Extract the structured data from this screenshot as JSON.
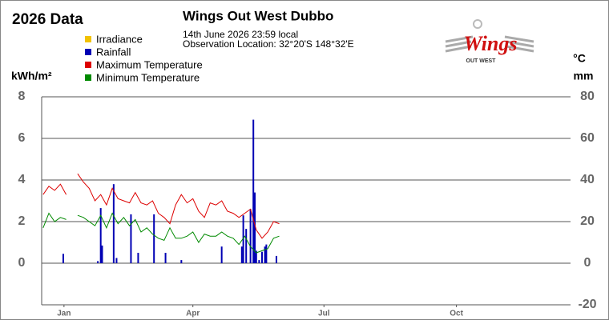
{
  "chart_data": {
    "type": "line",
    "title": "Wings Out West Dubbo",
    "subtitle": "14th June 2026  23:59 local",
    "location": "Observation Location: 32°20'S 148°32'E",
    "year_label": "2026 Data",
    "logo": {
      "title": "Wings",
      "subtitle": "OUT WEST"
    },
    "ylabel": "kWh/m²",
    "y2label": [
      "°C",
      "mm"
    ],
    "xlim": [
      0,
      365
    ],
    "xticks": [
      {
        "value": 15.5,
        "label": "Jan"
      },
      {
        "value": 105,
        "label": "Apr"
      },
      {
        "value": 196,
        "label": "Jul"
      },
      {
        "value": 288,
        "label": "Oct"
      }
    ],
    "ylim": [
      -2,
      8
    ],
    "yticks": [
      0,
      2,
      4,
      6,
      8
    ],
    "y2lim": [
      -20,
      80
    ],
    "y2ticks": [
      -20,
      0,
      20,
      40,
      60,
      80
    ],
    "grid": true,
    "series": [
      {
        "name": "Irradiance",
        "color": "#f2c200",
        "type": "line",
        "x": [],
        "values": []
      },
      {
        "name": "Rainfall",
        "color": "#0000b4",
        "type": "bar",
        "axis": "y2",
        "x": [
          15,
          39,
          41,
          42,
          50,
          52,
          62,
          67,
          78,
          86,
          97,
          125,
          139,
          140,
          142,
          145,
          147,
          148,
          149,
          151,
          153,
          155,
          156,
          163
        ],
        "values": [
          4.5,
          1,
          26.5,
          8.5,
          38,
          2.5,
          23.5,
          5,
          23.5,
          5,
          1.5,
          8,
          8,
          23,
          16.5,
          26,
          69,
          34,
          6,
          1.5,
          5.5,
          8,
          9,
          3.5
        ]
      },
      {
        "name": "Maximum Temperature",
        "color": "#dd0000",
        "type": "line",
        "axis": "y2",
        "x": [
          1,
          5,
          9,
          13,
          17,
          21,
          25,
          29,
          33,
          37,
          41,
          45,
          49,
          53,
          57,
          61,
          65,
          69,
          73,
          77,
          81,
          85,
          89,
          93,
          97,
          101,
          105,
          109,
          113,
          117,
          121,
          125,
          129,
          133,
          137,
          141,
          145,
          149,
          153,
          157,
          161,
          165
        ],
        "values": [
          33,
          37,
          35,
          38,
          33,
          null,
          43,
          39,
          36,
          30,
          33,
          28,
          36,
          31,
          30,
          29,
          34,
          29,
          28,
          30,
          24,
          22,
          19,
          28,
          33,
          29,
          31,
          25,
          22,
          29,
          28,
          30,
          25,
          24,
          22,
          24,
          26,
          16,
          12,
          15,
          20,
          19
        ]
      },
      {
        "name": "Minimum Temperature",
        "color": "#008a00",
        "type": "line",
        "axis": "y2",
        "x": [
          1,
          5,
          9,
          13,
          17,
          21,
          25,
          29,
          33,
          37,
          41,
          45,
          49,
          53,
          57,
          61,
          65,
          69,
          73,
          77,
          81,
          85,
          89,
          93,
          97,
          101,
          105,
          109,
          113,
          117,
          121,
          125,
          129,
          133,
          137,
          141,
          145,
          149,
          153,
          157,
          161,
          165
        ],
        "values": [
          17,
          24,
          20,
          22,
          21,
          null,
          23,
          22,
          20,
          18,
          23,
          17,
          24,
          19,
          22,
          18,
          21,
          15,
          17,
          14,
          12,
          11,
          17,
          12,
          12,
          13,
          15,
          10,
          14,
          13,
          13,
          15,
          13,
          12,
          9,
          13,
          8,
          5,
          6,
          7,
          12,
          13
        ]
      }
    ]
  }
}
